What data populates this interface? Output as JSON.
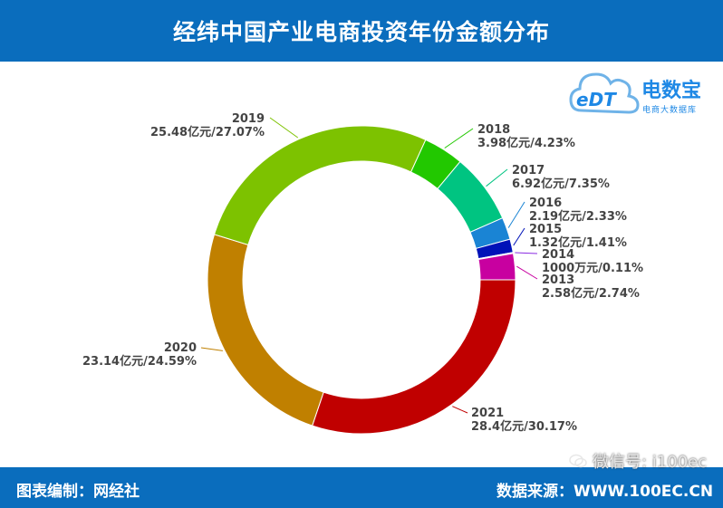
{
  "header": {
    "title": "经纬中国产业电商投资年份金额分布"
  },
  "footer": {
    "editor": "图表编制：网经社",
    "source": "数据来源：WWW.100EC.CN"
  },
  "watermark": {
    "text": "微信号: i100ec"
  },
  "logo": {
    "name": "电数宝",
    "subtitle": "电商大数据库",
    "mark": "eDT"
  },
  "chart_data": {
    "type": "pie",
    "subtype": "donut",
    "title": "经纬中国产业电商投资年份金额分布",
    "slices": [
      {
        "label": "2021",
        "value": 28.4,
        "value_text": "28.4亿元/30.17%",
        "percent": 30.17,
        "color": "#c00000"
      },
      {
        "label": "2020",
        "value": 23.14,
        "value_text": "23.14亿元/24.59%",
        "percent": 24.59,
        "color": "#c08000"
      },
      {
        "label": "2019",
        "value": 25.48,
        "value_text": "25.48亿元/27.07%",
        "percent": 27.07,
        "color": "#7dc200"
      },
      {
        "label": "2018",
        "value": 3.98,
        "value_text": "3.98亿元/4.23%",
        "percent": 4.23,
        "color": "#22c800"
      },
      {
        "label": "2017",
        "value": 6.92,
        "value_text": "6.92亿元/7.35%",
        "percent": 7.35,
        "color": "#00c481"
      },
      {
        "label": "2016",
        "value": 2.19,
        "value_text": "2.19亿元/2.33%",
        "percent": 2.33,
        "color": "#1a84d4"
      },
      {
        "label": "2015",
        "value": 1.32,
        "value_text": "1.32亿元/1.41%",
        "percent": 1.41,
        "color": "#0012b8"
      },
      {
        "label": "2014",
        "value": 0.1,
        "value_text": "1000万元/0.11%",
        "percent": 0.11,
        "color": "#8a2be2"
      },
      {
        "label": "2013",
        "value": 2.58,
        "value_text": "2.58亿元/2.74%",
        "percent": 2.74,
        "color": "#c800a0"
      }
    ]
  }
}
